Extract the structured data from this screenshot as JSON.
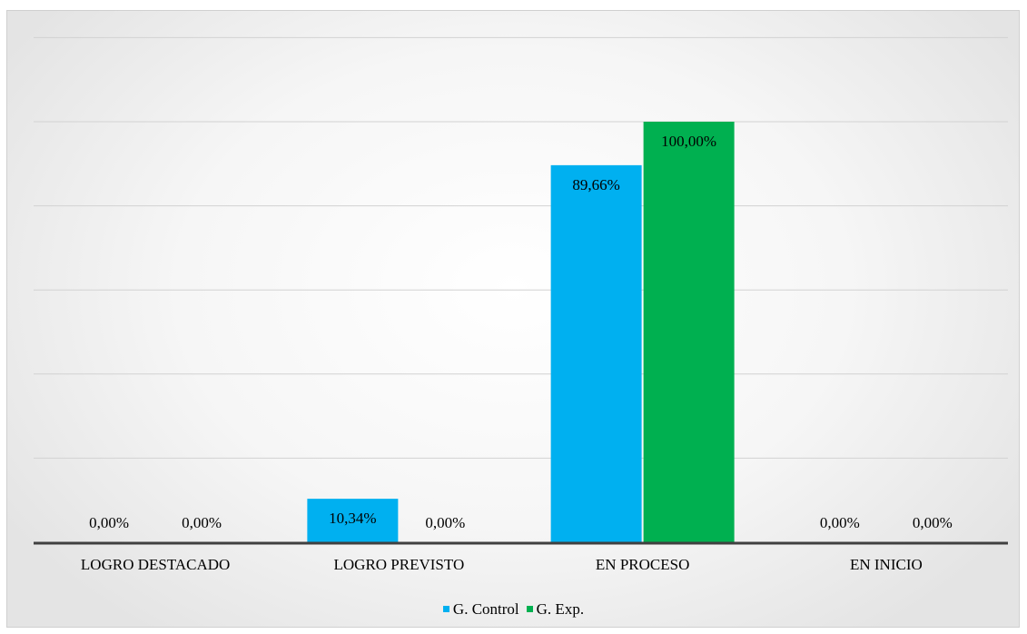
{
  "chart_data": {
    "type": "bar",
    "categories": [
      "LOGRO DESTACADO",
      "LOGRO PREVISTO",
      "EN PROCESO",
      "EN INICIO"
    ],
    "series": [
      {
        "name": "G. Control",
        "color": "#00b0f0",
        "values": [
          0.0,
          10.34,
          89.66,
          0.0
        ],
        "labels": [
          "0,00%",
          "10,34%",
          "89,66%",
          "0,00%"
        ]
      },
      {
        "name": "G. Exp.",
        "color": "#00b050",
        "values": [
          0.0,
          0.0,
          100.0,
          0.0
        ],
        "labels": [
          "0,00%",
          "0,00%",
          "100,00%",
          "0,00%"
        ]
      }
    ],
    "ylim": [
      0,
      120
    ],
    "grid": true,
    "legend_position": "bottom",
    "title": "",
    "xlabel": "",
    "ylabel": ""
  }
}
